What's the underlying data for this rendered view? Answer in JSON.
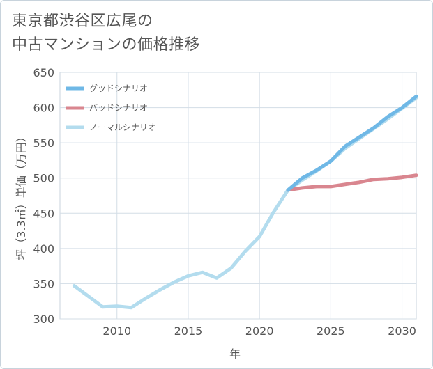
{
  "title_lines": [
    "東京都渋谷区広尾の",
    "中古マンションの価格推移"
  ],
  "chart_data": {
    "type": "line",
    "title": "東京都渋谷区広尾の中古マンションの価格推移",
    "xlabel": "年",
    "ylabel": "坪（3.3㎡）単価（万円）",
    "xlim": [
      2006,
      2031
    ],
    "ylim": [
      300,
      650
    ],
    "xticks": [
      2010,
      2015,
      2020,
      2025,
      2030
    ],
    "yticks": [
      300,
      350,
      400,
      450,
      500,
      550,
      600,
      650
    ],
    "grid": true,
    "legend_position": "top-left",
    "series": [
      {
        "name": "グッドシナリオ",
        "color": "#6fb8e6",
        "x": [
          2022,
          2023,
          2024,
          2025,
          2026,
          2027,
          2028,
          2029,
          2030,
          2031
        ],
        "y": [
          483,
          500,
          511,
          524,
          545,
          558,
          571,
          587,
          600,
          616
        ]
      },
      {
        "name": "バッドシナリオ",
        "color": "#d9868f",
        "x": [
          2022,
          2023,
          2024,
          2025,
          2026,
          2027,
          2028,
          2029,
          2030,
          2031
        ],
        "y": [
          483,
          486,
          488,
          488,
          491,
          494,
          498,
          499,
          501,
          504
        ]
      },
      {
        "name": "ノーマルシナリオ",
        "color": "#b3dcee",
        "x": [
          2007,
          2008,
          2009,
          2010,
          2011,
          2012,
          2013,
          2014,
          2015,
          2016,
          2017,
          2018,
          2019,
          2020,
          2021,
          2022,
          2023,
          2024,
          2025,
          2026,
          2027,
          2028,
          2029,
          2030,
          2031
        ],
        "y": [
          347,
          332,
          317,
          318,
          316,
          329,
          341,
          352,
          361,
          366,
          358,
          372,
          396,
          417,
          452,
          483,
          497,
          510,
          524,
          542,
          556,
          570,
          584,
          599,
          614
        ]
      }
    ]
  }
}
